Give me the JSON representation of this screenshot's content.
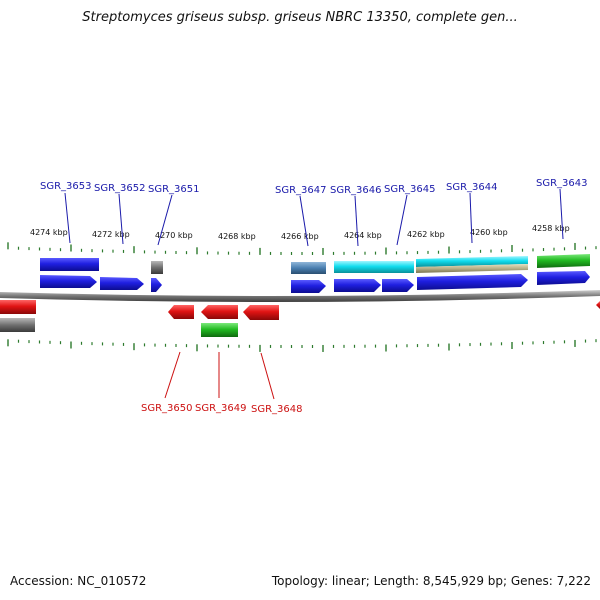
{
  "title": "Streptomyces griseus subsp. griseus NBRC 13350, complete gen...",
  "footer": {
    "accession": "Accession: NC_010572",
    "info": "Topology: linear; Length: 8,545,929 bp; Genes: 7,222"
  },
  "colors": {
    "backbone": "#777777",
    "tick": "#2d7a2d",
    "forward_label": "#1a1aaa",
    "reverse_label": "#cc1111",
    "blue": "#1f1fe0",
    "red": "#e01414",
    "green": "#22bb22",
    "cyan": "#11ddee",
    "steel": "#4a7fb0",
    "gray": "#707070",
    "tan": "#b8b088"
  },
  "kbp_labels": [
    "4274 kbp",
    "4272 kbp",
    "4270 kbp",
    "4268 kbp",
    "4266 kbp",
    "4264 kbp",
    "4262 kbp",
    "4260 kbp",
    "4258 kbp"
  ],
  "forward_genes": [
    "SGR_3653",
    "SGR_3652",
    "SGR_3651",
    "SGR_3647",
    "SGR_3646",
    "SGR_3645",
    "SGR_3644",
    "SGR_3643"
  ],
  "reverse_genes": [
    "SGR_3650",
    "SGR_3649",
    "SGR_3648"
  ]
}
